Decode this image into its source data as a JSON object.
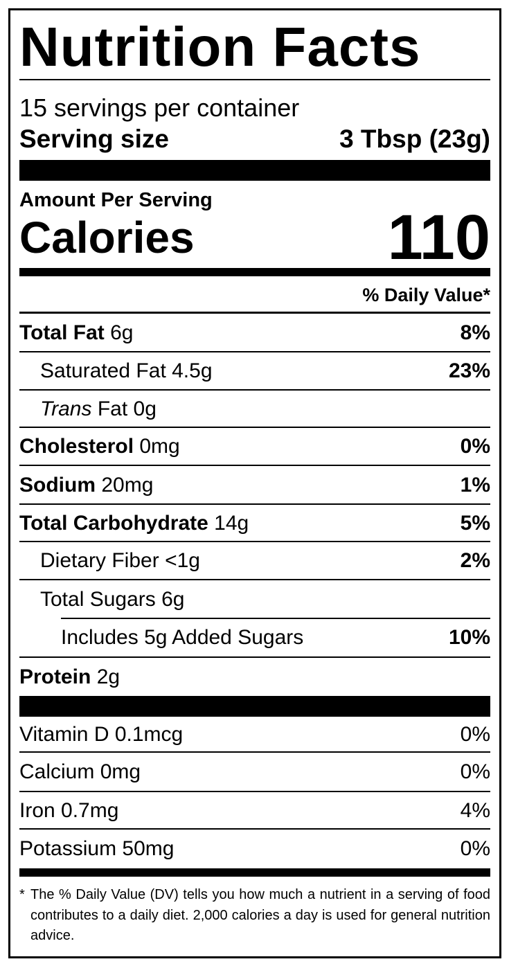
{
  "title": "Nutrition Facts",
  "servings_per_container": "15 servings per container",
  "serving_size": {
    "label": "Serving size",
    "value": "3 Tbsp (23g)"
  },
  "amount_per_serving": "Amount Per Serving",
  "calories": {
    "label": "Calories",
    "value": "110"
  },
  "daily_value_header": "% Daily Value*",
  "nutrients": [
    {
      "name": "Total Fat",
      "amount": "6g",
      "dv": "8%"
    },
    {
      "name": "Saturated Fat",
      "amount": "4.5g",
      "dv": "23%"
    },
    {
      "name": "Trans",
      "name_suffix": "Fat",
      "amount": "0g",
      "dv": ""
    },
    {
      "name": "Cholesterol",
      "amount": "0mg",
      "dv": "0%"
    },
    {
      "name": "Sodium",
      "amount": "20mg",
      "dv": "1%"
    },
    {
      "name": "Total Carbohydrate",
      "amount": "14g",
      "dv": "5%"
    },
    {
      "name": "Dietary Fiber",
      "amount": "<1g",
      "dv": "2%"
    },
    {
      "name": "Total Sugars",
      "amount": "6g",
      "dv": ""
    },
    {
      "name": "Includes 5g Added Sugars",
      "amount": "",
      "dv": "10%"
    },
    {
      "name": "Protein",
      "amount": "2g",
      "dv": ""
    }
  ],
  "vitamins": [
    {
      "label": "Vitamin D 0.1mcg",
      "dv": "0%"
    },
    {
      "label": "Calcium 0mg",
      "dv": "0%"
    },
    {
      "label": "Iron 0.7mg",
      "dv": "4%"
    },
    {
      "label": "Potassium 50mg",
      "dv": "0%"
    }
  ],
  "footnote": {
    "star": "*",
    "text": "The % Daily Value (DV) tells you how much a nutrient in a serving of food contributes to a daily diet. 2,000 calories a day is used for general nutrition advice."
  }
}
